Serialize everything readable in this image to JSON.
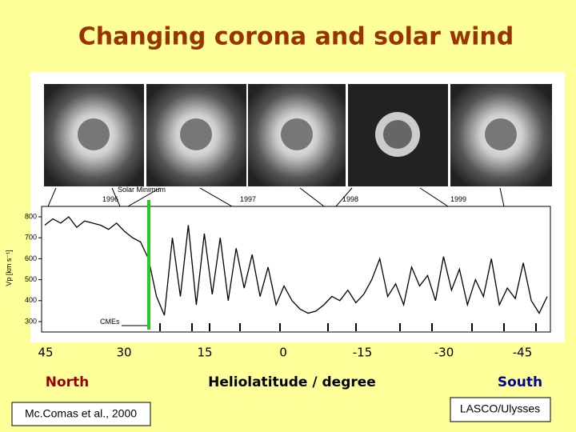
{
  "title": "Changing corona and solar wind",
  "figure": {
    "annotations": {
      "solar_minimum": "Solar Minimum",
      "years": [
        "1996",
        "1997",
        "1998",
        "1999"
      ],
      "cmes": "CMEs"
    },
    "y_label": "Vp [km s⁻¹]",
    "yticks": [
      800,
      700,
      600,
      500,
      400,
      300
    ],
    "speed": [
      760,
      790,
      770,
      800,
      750,
      780,
      770,
      760,
      740,
      770,
      730,
      700,
      680,
      600,
      420,
      330,
      700,
      420,
      760,
      380,
      720,
      430,
      700,
      400,
      650,
      460,
      620,
      420,
      560,
      380,
      470,
      400,
      360,
      340,
      350,
      380,
      420,
      400,
      450,
      390,
      430,
      500,
      600,
      420,
      480,
      380,
      560,
      470,
      520,
      400,
      610,
      450,
      550,
      380,
      500,
      420,
      600,
      380,
      460,
      410,
      580,
      400,
      340,
      420
    ]
  },
  "latitude_ticks": [
    "45",
    "30",
    "15",
    "0",
    "-15",
    "-30",
    "-45"
  ],
  "north": "North",
  "axis_title": "Heliolatitude / degree",
  "south": "South",
  "credits": [
    "Mc.Comas et al., 2000",
    "LASCO/Ulysses"
  ]
}
